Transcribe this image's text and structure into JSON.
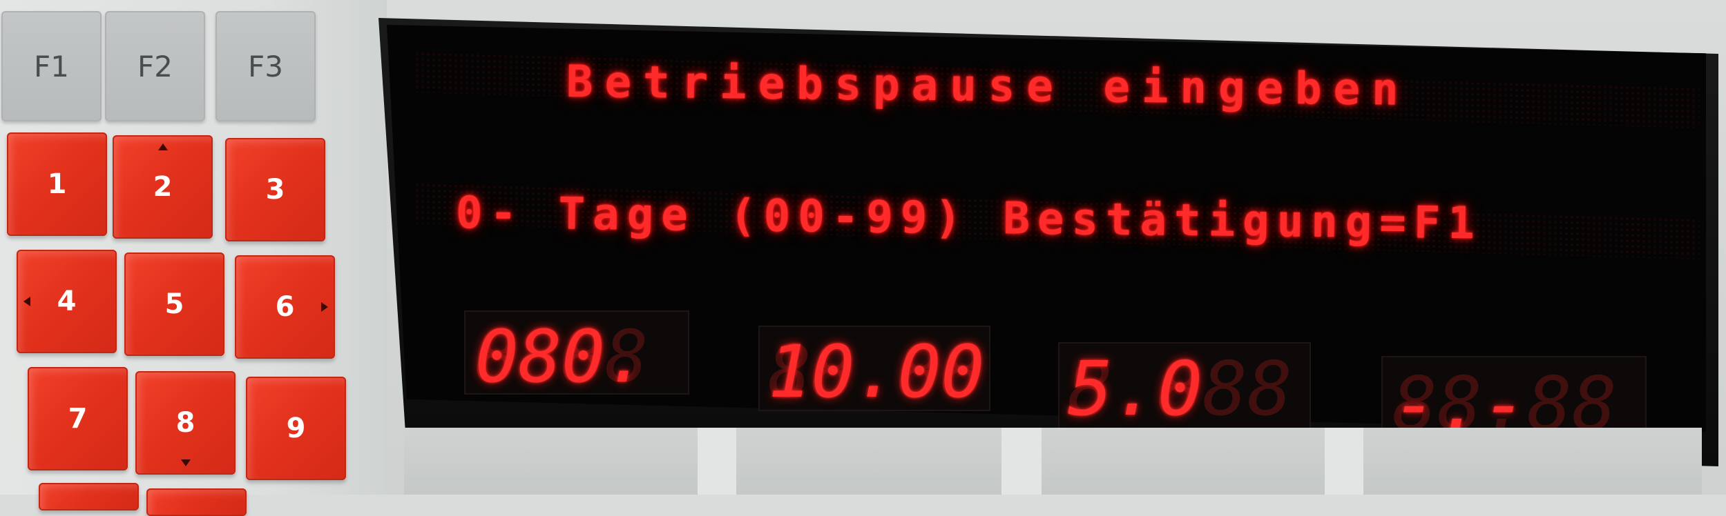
{
  "function_keys": [
    "F1",
    "F2",
    "F3"
  ],
  "numeric_keys": [
    "1",
    "2",
    "3",
    "4",
    "5",
    "6",
    "7",
    "8",
    "9"
  ],
  "display": {
    "line1": "Betriebspause eingeben",
    "line2": "0- Tage (00-99) Bestätigung=F1",
    "segment_displays": [
      "080.",
      "10.00",
      "5.0",
      "-.-"
    ]
  },
  "icons": {
    "key_2": "arrow-up-icon",
    "key_4": "arrow-left-icon",
    "key_6": "arrow-right-icon",
    "key_8": "arrow-down-icon"
  },
  "colors": {
    "led_red": "#ff2a2a",
    "key_red": "#e3321d",
    "function_key_grey": "#bcc0c0",
    "display_black": "#050404"
  }
}
